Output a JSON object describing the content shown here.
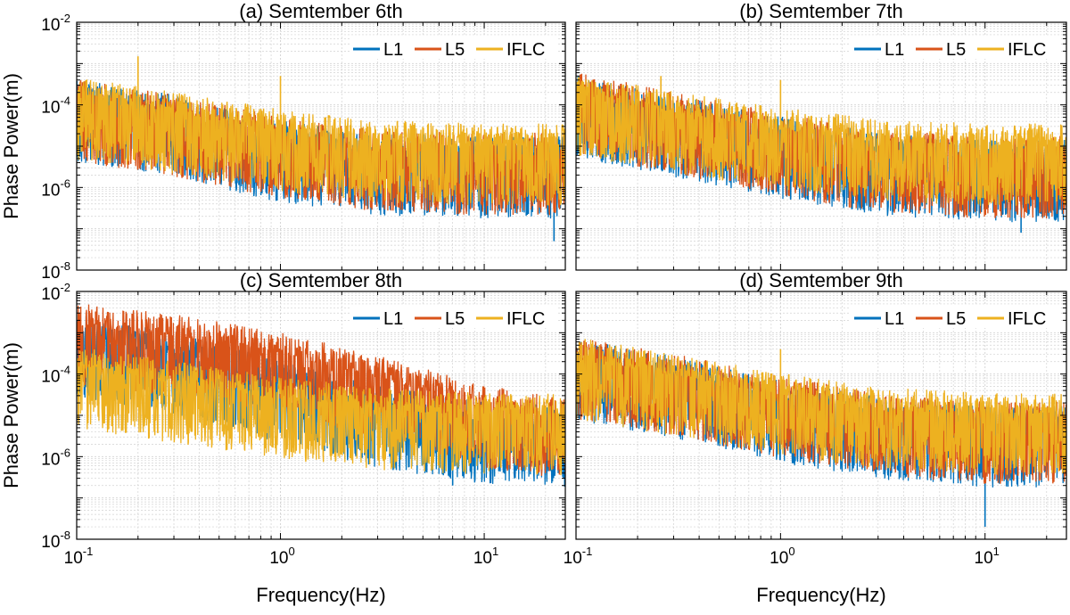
{
  "chart_data": [
    {
      "type": "line",
      "title": "(a) Semtember 6th",
      "xlabel": "",
      "ylabel": "Phase Power(m)",
      "x_scale": "log",
      "y_scale": "log",
      "xlim": [
        0.1,
        25
      ],
      "ylim": [
        1e-08,
        0.01
      ],
      "x_ticks": [
        0.1,
        1,
        10
      ],
      "x_tick_labels": [
        {
          "base": "",
          "exp": ""
        },
        {
          "base": "",
          "exp": ""
        },
        {
          "base": "",
          "exp": ""
        }
      ],
      "y_ticks": [
        1e-08,
        1e-06,
        0.0001,
        0.01
      ],
      "y_tick_labels": [
        {
          "base": "10",
          "exp": "-8"
        },
        {
          "base": "10",
          "exp": "-6"
        },
        {
          "base": "10",
          "exp": "-4"
        },
        {
          "base": "10",
          "exp": "-2"
        }
      ],
      "grid": true,
      "legend_position": "top-right",
      "series": [
        {
          "name": "L1",
          "color": "#0072BD",
          "trend": {
            "x": [
              0.1,
              0.3,
              1,
              3,
              10,
              25
            ],
            "y": [
              0.00012,
              5e-05,
              1.2e-05,
              6e-06,
              5e-06,
              5e-06
            ]
          },
          "spikes_min": [
            {
              "x": 0.5,
              "y": 2e-06
            },
            {
              "x": 2.5,
              "y": 3e-07
            },
            {
              "x": 22,
              "y": 5e-08
            }
          ]
        },
        {
          "name": "L5",
          "color": "#D95319",
          "trend": {
            "x": [
              0.1,
              0.3,
              1,
              3,
              10,
              25
            ],
            "y": [
              0.00012,
              5e-05,
              1.5e-05,
              7e-06,
              6e-06,
              6e-06
            ]
          }
        },
        {
          "name": "IFLC",
          "color": "#EDB120",
          "trend": {
            "x": [
              0.1,
              0.3,
              1,
              3,
              10,
              25
            ],
            "y": [
              0.00013,
              6e-05,
              2.2e-05,
              1.2e-05,
              1e-05,
              1e-05
            ]
          },
          "spikes_max": [
            {
              "x": 0.2,
              "y": 0.0015
            },
            {
              "x": 1.0,
              "y": 0.0005
            }
          ]
        }
      ]
    },
    {
      "type": "line",
      "title": "(b) Semtember 7th",
      "xlabel": "",
      "ylabel": "",
      "x_scale": "log",
      "y_scale": "log",
      "xlim": [
        0.1,
        25
      ],
      "ylim": [
        1e-08,
        0.01
      ],
      "x_ticks": [
        0.1,
        1,
        10
      ],
      "x_tick_labels": [
        {
          "base": "",
          "exp": ""
        },
        {
          "base": "",
          "exp": ""
        },
        {
          "base": "",
          "exp": ""
        }
      ],
      "y_ticks": [
        1e-08,
        1e-06,
        0.0001,
        0.01
      ],
      "y_tick_labels": [
        {
          "base": "",
          "exp": ""
        },
        {
          "base": "",
          "exp": ""
        },
        {
          "base": "",
          "exp": ""
        },
        {
          "base": "",
          "exp": ""
        }
      ],
      "grid": true,
      "legend_position": "top-right",
      "series": [
        {
          "name": "L1",
          "color": "#0072BD",
          "trend": {
            "x": [
              0.1,
              0.3,
              1,
              3,
              10,
              25
            ],
            "y": [
              0.00015,
              5e-05,
              1.5e-05,
              6e-06,
              4e-06,
              4e-06
            ]
          },
          "spikes_min": [
            {
              "x": 8,
              "y": 3e-07
            },
            {
              "x": 15,
              "y": 8e-08
            }
          ]
        },
        {
          "name": "L5",
          "color": "#D95319",
          "trend": {
            "x": [
              0.1,
              0.3,
              1,
              3,
              10,
              25
            ],
            "y": [
              0.00018,
              6e-05,
              1.8e-05,
              7e-06,
              5e-06,
              5e-06
            ]
          }
        },
        {
          "name": "IFLC",
          "color": "#EDB120",
          "trend": {
            "x": [
              0.1,
              0.3,
              1,
              3,
              10,
              25
            ],
            "y": [
              0.00016,
              6e-05,
              2.5e-05,
              1.3e-05,
              1e-05,
              1e-05
            ]
          },
          "spikes_max": [
            {
              "x": 0.26,
              "y": 0.0005
            },
            {
              "x": 1.0,
              "y": 0.0004
            }
          ]
        }
      ]
    },
    {
      "type": "line",
      "title": "(c) Semtember 8th",
      "xlabel": "Frequency(Hz)",
      "ylabel": "Phase Power(m)",
      "x_scale": "log",
      "y_scale": "log",
      "xlim": [
        0.1,
        25
      ],
      "ylim": [
        1e-08,
        0.01
      ],
      "x_ticks": [
        0.1,
        1,
        10
      ],
      "x_tick_labels": [
        {
          "base": "10",
          "exp": "-1"
        },
        {
          "base": "10",
          "exp": "0"
        },
        {
          "base": "10",
          "exp": "1"
        }
      ],
      "y_ticks": [
        1e-08,
        1e-06,
        0.0001,
        0.01
      ],
      "y_tick_labels": [
        {
          "base": "10",
          "exp": "-8"
        },
        {
          "base": "10",
          "exp": "-6"
        },
        {
          "base": "10",
          "exp": "-4"
        },
        {
          "base": "10",
          "exp": "-2"
        }
      ],
      "grid": true,
      "legend_position": "top-right",
      "series": [
        {
          "name": "L1",
          "color": "#0072BD",
          "trend": {
            "x": [
              0.1,
              0.3,
              1,
              3,
              10,
              25
            ],
            "y": [
              0.0008,
              0.0003,
              6e-05,
              1.5e-05,
              6e-06,
              5e-06
            ]
          },
          "spikes_min": [
            {
              "x": 7,
              "y": 2e-07
            }
          ]
        },
        {
          "name": "L5",
          "color": "#D95319",
          "trend": {
            "x": [
              0.1,
              0.3,
              1,
              3,
              10,
              25
            ],
            "y": [
              0.0015,
              0.0008,
              0.0003,
              8e-05,
              1.5e-05,
              8e-06
            ]
          }
        },
        {
          "name": "IFLC",
          "color": "#EDB120",
          "trend": {
            "x": [
              0.1,
              0.3,
              1,
              3,
              10,
              25
            ],
            "y": [
              0.00013,
              6e-05,
              2.5e-05,
              1.3e-05,
              1e-05,
              1e-05
            ]
          }
        }
      ]
    },
    {
      "type": "line",
      "title": "(d) Semtember 9th",
      "xlabel": "Frequency(Hz)",
      "ylabel": "",
      "x_scale": "log",
      "y_scale": "log",
      "xlim": [
        0.1,
        25
      ],
      "ylim": [
        1e-08,
        0.01
      ],
      "x_ticks": [
        0.1,
        1,
        10
      ],
      "x_tick_labels": [
        {
          "base": "10",
          "exp": "-1"
        },
        {
          "base": "10",
          "exp": "0"
        },
        {
          "base": "10",
          "exp": "1"
        }
      ],
      "y_ticks": [
        1e-08,
        1e-06,
        0.0001,
        0.01
      ],
      "y_tick_labels": [
        {
          "base": "",
          "exp": ""
        },
        {
          "base": "",
          "exp": ""
        },
        {
          "base": "",
          "exp": ""
        },
        {
          "base": "",
          "exp": ""
        }
      ],
      "grid": true,
      "legend_position": "top-right",
      "series": [
        {
          "name": "L1",
          "color": "#0072BD",
          "trend": {
            "x": [
              0.1,
              0.3,
              1,
              3,
              10,
              25
            ],
            "y": [
              0.0002,
              8e-05,
              2e-05,
              8e-06,
              5e-06,
              5e-06
            ]
          },
          "spikes_min": [
            {
              "x": 10,
              "y": 2e-08
            }
          ]
        },
        {
          "name": "L5",
          "color": "#D95319",
          "trend": {
            "x": [
              0.1,
              0.3,
              1,
              3,
              10,
              25
            ],
            "y": [
              0.00022,
              9e-05,
              2.5e-05,
              1e-05,
              6e-06,
              6e-06
            ]
          }
        },
        {
          "name": "IFLC",
          "color": "#EDB120",
          "trend": {
            "x": [
              0.1,
              0.3,
              1,
              3,
              10,
              25
            ],
            "y": [
              0.00022,
              9e-05,
              3e-05,
              1.4e-05,
              1e-05,
              1e-05
            ]
          },
          "spikes_max": [
            {
              "x": 1.0,
              "y": 0.0004
            }
          ]
        }
      ]
    }
  ]
}
